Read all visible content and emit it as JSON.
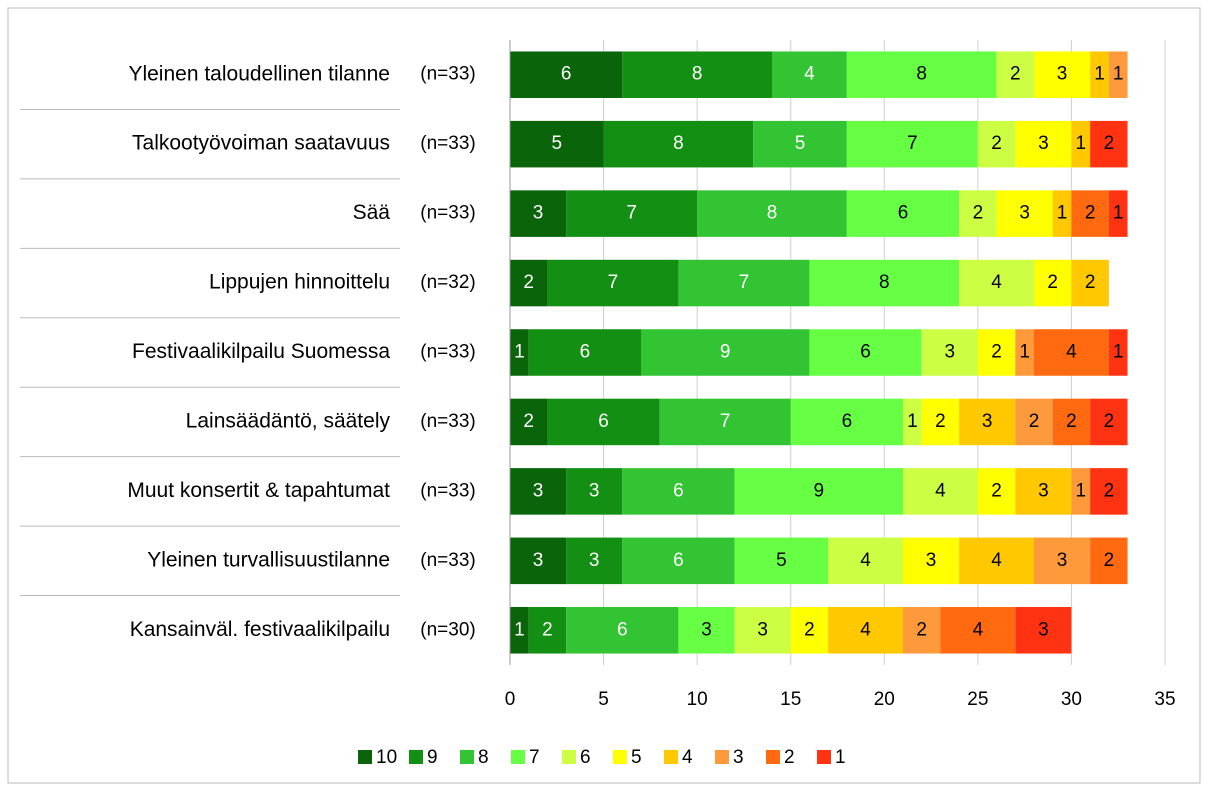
{
  "chart_data": {
    "type": "stacked-bar-horizontal",
    "categories": [
      "Yleinen taloudellinen tilanne",
      "Talkootyövoiman saatavuus",
      "Sää",
      "Lippujen hinnoittelu",
      "Festivaalikilpailu Suomessa",
      "Lainsäädäntö, säätely",
      "Muut konsertit & tapahtumat",
      "Yleinen turvallisuustilanne",
      "Kansainväl. festivaalikilpailu"
    ],
    "sample_sizes": [
      "(n=33)",
      "(n=33)",
      "(n=33)",
      "(n=32)",
      "(n=33)",
      "(n=33)",
      "(n=33)",
      "(n=33)",
      "(n=30)"
    ],
    "series": [
      {
        "name": "10",
        "color": "#0a640a",
        "values": [
          6,
          5,
          3,
          2,
          1,
          2,
          3,
          3,
          1
        ]
      },
      {
        "name": "9",
        "color": "#139013",
        "values": [
          8,
          8,
          7,
          7,
          6,
          6,
          3,
          3,
          2
        ]
      },
      {
        "name": "8",
        "color": "#33c433",
        "values": [
          4,
          5,
          8,
          7,
          9,
          7,
          6,
          6,
          6
        ]
      },
      {
        "name": "7",
        "color": "#66ff44",
        "values": [
          8,
          7,
          6,
          8,
          6,
          6,
          9,
          5,
          3
        ]
      },
      {
        "name": "6",
        "color": "#ccff44",
        "values": [
          2,
          2,
          2,
          4,
          3,
          1,
          4,
          4,
          3
        ]
      },
      {
        "name": "5",
        "color": "#ffff00",
        "values": [
          3,
          3,
          3,
          2,
          2,
          2,
          2,
          3,
          2
        ]
      },
      {
        "name": "4",
        "color": "#ffc800",
        "values": [
          1,
          1,
          1,
          2,
          0,
          3,
          3,
          4,
          4
        ]
      },
      {
        "name": "3",
        "color": "#ff9a3c",
        "values": [
          1,
          0,
          0,
          0,
          1,
          2,
          1,
          3,
          2
        ]
      },
      {
        "name": "2",
        "color": "#ff6a10",
        "values": [
          0,
          0,
          2,
          0,
          4,
          2,
          0,
          2,
          4
        ]
      },
      {
        "name": "1",
        "color": "#ff3311",
        "values": [
          0,
          2,
          1,
          0,
          1,
          2,
          2,
          0,
          3
        ]
      }
    ],
    "xlim": [
      0,
      35
    ],
    "xticks": [
      0,
      5,
      10,
      15,
      20,
      25,
      30,
      35
    ],
    "grid": true,
    "legend": "bottom"
  }
}
